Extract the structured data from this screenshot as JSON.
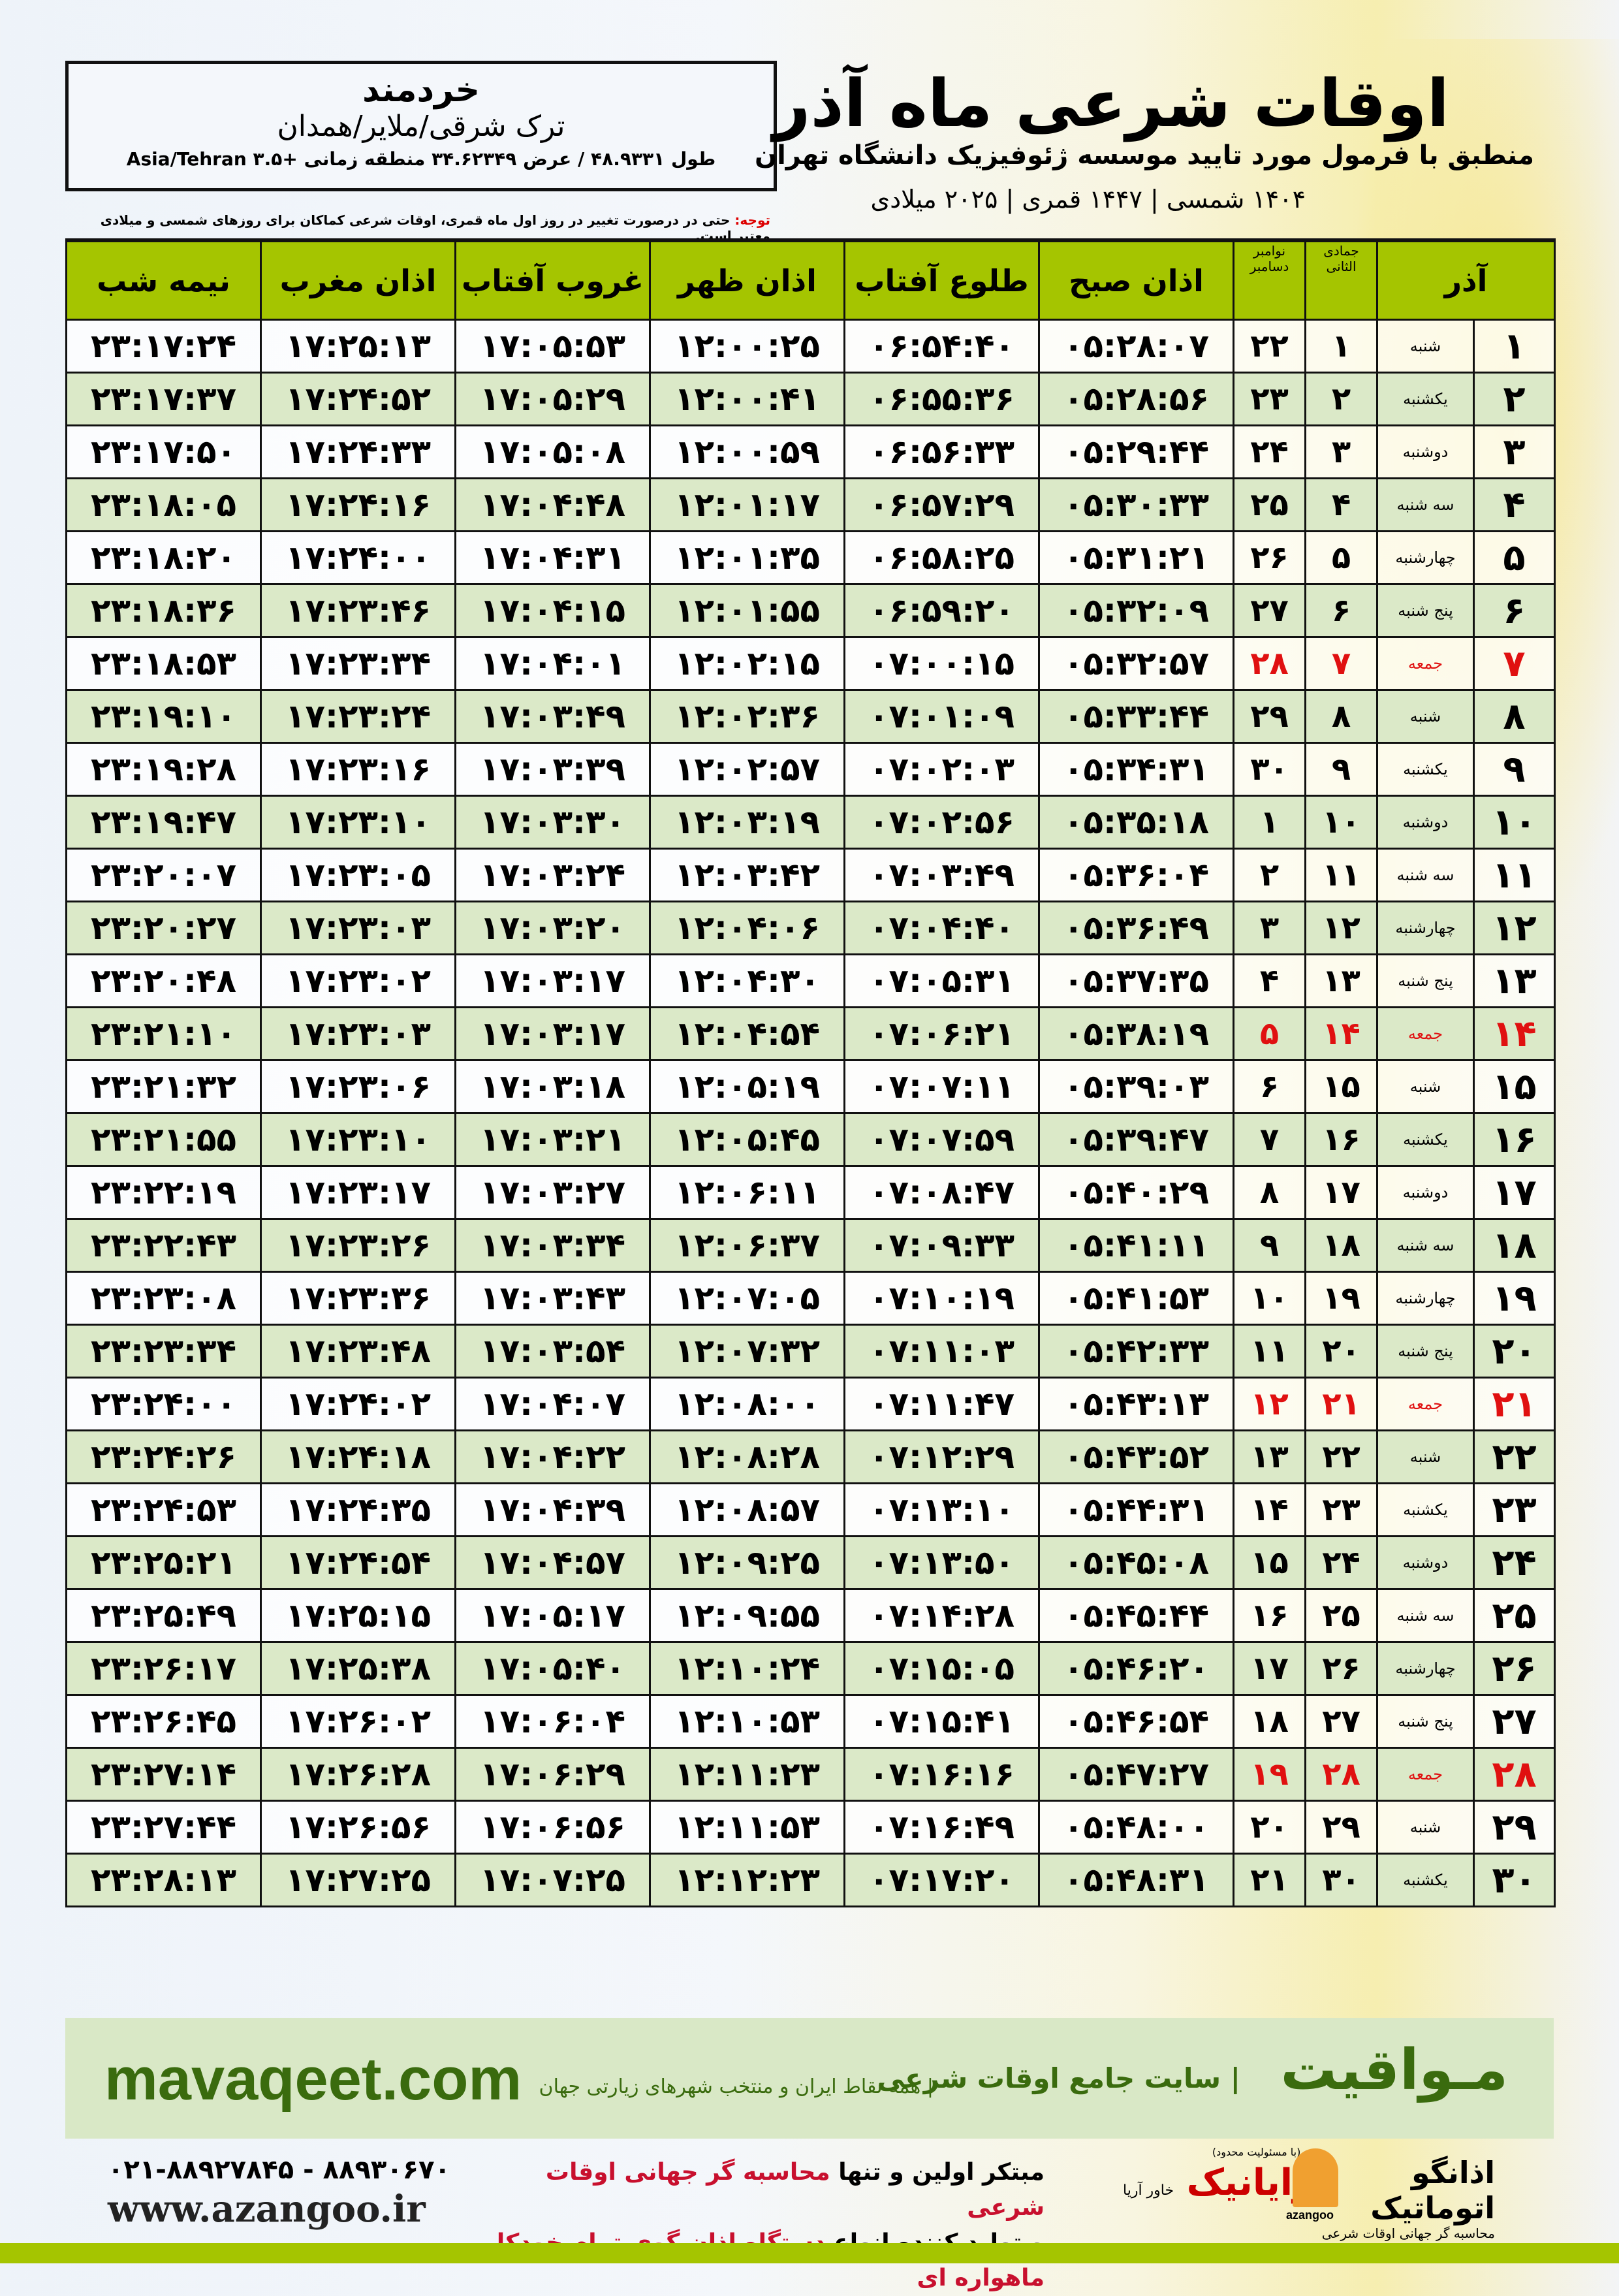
{
  "location": {
    "city": "خردمند",
    "region": "ترک شرقی/ملایر/همدان",
    "coords": "طول ۴۸.۹۳۳۱ / عرض ۳۴.۶۲۳۴۹ منطقه زمانی +۳.۵ Asia/Tehran"
  },
  "header": {
    "title": "اوقات شرعی ماه آذر",
    "subtitle": "منطبق با فرمول مورد تایید موسسه ژئوفیزیک دانشگاه تهران",
    "dates": "۱۴۰۴ شمسی | ۱۴۴۷ قمری | ۲۰۲۵ میلادی"
  },
  "note": {
    "label": "توجه:",
    "text": " حتی در درصورت تغییر در روز اول ماه قمری، اوقات شرعی کماکان برای روزهای شمسی و میلادی معتبر است."
  },
  "columns": {
    "month": "آذر",
    "hijri": "جمادی الثانی",
    "gregorian": "نوامبر دسامبر",
    "fajr": "اذان صبح",
    "sunrise": "طلوع آفتاب",
    "dhuhr": "اذان ظهر",
    "sunset": "غروب آفتاب",
    "maghrib": "اذان مغرب",
    "midnight": "نیمه شب"
  },
  "colors": {
    "header_green": "#a5c500",
    "row_green": "#dbe9c8",
    "friday_red": "#e01010",
    "brand_green": "#3a6b0e"
  },
  "rows": [
    [
      "۱",
      "شنبه",
      "۱",
      "۲۲",
      "۰۵:۲۸:۰۷",
      "۰۶:۵۴:۴۰",
      "۱۲:۰۰:۲۵",
      "۱۷:۰۵:۵۳",
      "۱۷:۲۵:۱۳",
      "۲۳:۱۷:۲۴"
    ],
    [
      "۲",
      "یکشنبه",
      "۲",
      "۲۳",
      "۰۵:۲۸:۵۶",
      "۰۶:۵۵:۳۶",
      "۱۲:۰۰:۴۱",
      "۱۷:۰۵:۲۹",
      "۱۷:۲۴:۵۲",
      "۲۳:۱۷:۳۷"
    ],
    [
      "۳",
      "دوشنبه",
      "۳",
      "۲۴",
      "۰۵:۲۹:۴۴",
      "۰۶:۵۶:۳۳",
      "۱۲:۰۰:۵۹",
      "۱۷:۰۵:۰۸",
      "۱۷:۲۴:۳۳",
      "۲۳:۱۷:۵۰"
    ],
    [
      "۴",
      "سه شنبه",
      "۴",
      "۲۵",
      "۰۵:۳۰:۳۳",
      "۰۶:۵۷:۲۹",
      "۱۲:۰۱:۱۷",
      "۱۷:۰۴:۴۸",
      "۱۷:۲۴:۱۶",
      "۲۳:۱۸:۰۵"
    ],
    [
      "۵",
      "چهارشنبه",
      "۵",
      "۲۶",
      "۰۵:۳۱:۲۱",
      "۰۶:۵۸:۲۵",
      "۱۲:۰۱:۳۵",
      "۱۷:۰۴:۳۱",
      "۱۷:۲۴:۰۰",
      "۲۳:۱۸:۲۰"
    ],
    [
      "۶",
      "پنج شنبه",
      "۶",
      "۲۷",
      "۰۵:۳۲:۰۹",
      "۰۶:۵۹:۲۰",
      "۱۲:۰۱:۵۵",
      "۱۷:۰۴:۱۵",
      "۱۷:۲۳:۴۶",
      "۲۳:۱۸:۳۶"
    ],
    [
      "۷",
      "جمعه",
      "۷",
      "۲۸",
      "۰۵:۳۲:۵۷",
      "۰۷:۰۰:۱۵",
      "۱۲:۰۲:۱۵",
      "۱۷:۰۴:۰۱",
      "۱۷:۲۳:۳۴",
      "۲۳:۱۸:۵۳"
    ],
    [
      "۸",
      "شنبه",
      "۸",
      "۲۹",
      "۰۵:۳۳:۴۴",
      "۰۷:۰۱:۰۹",
      "۱۲:۰۲:۳۶",
      "۱۷:۰۳:۴۹",
      "۱۷:۲۳:۲۴",
      "۲۳:۱۹:۱۰"
    ],
    [
      "۹",
      "یکشنبه",
      "۹",
      "۳۰",
      "۰۵:۳۴:۳۱",
      "۰۷:۰۲:۰۳",
      "۱۲:۰۲:۵۷",
      "۱۷:۰۳:۳۹",
      "۱۷:۲۳:۱۶",
      "۲۳:۱۹:۲۸"
    ],
    [
      "۱۰",
      "دوشنبه",
      "۱۰",
      "۱",
      "۰۵:۳۵:۱۸",
      "۰۷:۰۲:۵۶",
      "۱۲:۰۳:۱۹",
      "۱۷:۰۳:۳۰",
      "۱۷:۲۳:۱۰",
      "۲۳:۱۹:۴۷"
    ],
    [
      "۱۱",
      "سه شنبه",
      "۱۱",
      "۲",
      "۰۵:۳۶:۰۴",
      "۰۷:۰۳:۴۹",
      "۱۲:۰۳:۴۲",
      "۱۷:۰۳:۲۴",
      "۱۷:۲۳:۰۵",
      "۲۳:۲۰:۰۷"
    ],
    [
      "۱۲",
      "چهارشنبه",
      "۱۲",
      "۳",
      "۰۵:۳۶:۴۹",
      "۰۷:۰۴:۴۰",
      "۱۲:۰۴:۰۶",
      "۱۷:۰۳:۲۰",
      "۱۷:۲۳:۰۳",
      "۲۳:۲۰:۲۷"
    ],
    [
      "۱۳",
      "پنج شنبه",
      "۱۳",
      "۴",
      "۰۵:۳۷:۳۵",
      "۰۷:۰۵:۳۱",
      "۱۲:۰۴:۳۰",
      "۱۷:۰۳:۱۷",
      "۱۷:۲۳:۰۲",
      "۲۳:۲۰:۴۸"
    ],
    [
      "۱۴",
      "جمعه",
      "۱۴",
      "۵",
      "۰۵:۳۸:۱۹",
      "۰۷:۰۶:۲۱",
      "۱۲:۰۴:۵۴",
      "۱۷:۰۳:۱۷",
      "۱۷:۲۳:۰۳",
      "۲۳:۲۱:۱۰"
    ],
    [
      "۱۵",
      "شنبه",
      "۱۵",
      "۶",
      "۰۵:۳۹:۰۳",
      "۰۷:۰۷:۱۱",
      "۱۲:۰۵:۱۹",
      "۱۷:۰۳:۱۸",
      "۱۷:۲۳:۰۶",
      "۲۳:۲۱:۳۲"
    ],
    [
      "۱۶",
      "یکشنبه",
      "۱۶",
      "۷",
      "۰۵:۳۹:۴۷",
      "۰۷:۰۷:۵۹",
      "۱۲:۰۵:۴۵",
      "۱۷:۰۳:۲۱",
      "۱۷:۲۳:۱۰",
      "۲۳:۲۱:۵۵"
    ],
    [
      "۱۷",
      "دوشنبه",
      "۱۷",
      "۸",
      "۰۵:۴۰:۲۹",
      "۰۷:۰۸:۴۷",
      "۱۲:۰۶:۱۱",
      "۱۷:۰۳:۲۷",
      "۱۷:۲۳:۱۷",
      "۲۳:۲۲:۱۹"
    ],
    [
      "۱۸",
      "سه شنبه",
      "۱۸",
      "۹",
      "۰۵:۴۱:۱۱",
      "۰۷:۰۹:۳۳",
      "۱۲:۰۶:۳۷",
      "۱۷:۰۳:۳۴",
      "۱۷:۲۳:۲۶",
      "۲۳:۲۲:۴۳"
    ],
    [
      "۱۹",
      "چهارشنبه",
      "۱۹",
      "۱۰",
      "۰۵:۴۱:۵۳",
      "۰۷:۱۰:۱۹",
      "۱۲:۰۷:۰۵",
      "۱۷:۰۳:۴۳",
      "۱۷:۲۳:۳۶",
      "۲۳:۲۳:۰۸"
    ],
    [
      "۲۰",
      "پنج شنبه",
      "۲۰",
      "۱۱",
      "۰۵:۴۲:۳۳",
      "۰۷:۱۱:۰۳",
      "۱۲:۰۷:۳۲",
      "۱۷:۰۳:۵۴",
      "۱۷:۲۳:۴۸",
      "۲۳:۲۳:۳۴"
    ],
    [
      "۲۱",
      "جمعه",
      "۲۱",
      "۱۲",
      "۰۵:۴۳:۱۳",
      "۰۷:۱۱:۴۷",
      "۱۲:۰۸:۰۰",
      "۱۷:۰۴:۰۷",
      "۱۷:۲۴:۰۲",
      "۲۳:۲۴:۰۰"
    ],
    [
      "۲۲",
      "شنبه",
      "۲۲",
      "۱۳",
      "۰۵:۴۳:۵۲",
      "۰۷:۱۲:۲۹",
      "۱۲:۰۸:۲۸",
      "۱۷:۰۴:۲۲",
      "۱۷:۲۴:۱۸",
      "۲۳:۲۴:۲۶"
    ],
    [
      "۲۳",
      "یکشنبه",
      "۲۳",
      "۱۴",
      "۰۵:۴۴:۳۱",
      "۰۷:۱۳:۱۰",
      "۱۲:۰۸:۵۷",
      "۱۷:۰۴:۳۹",
      "۱۷:۲۴:۳۵",
      "۲۳:۲۴:۵۳"
    ],
    [
      "۲۴",
      "دوشنبه",
      "۲۴",
      "۱۵",
      "۰۵:۴۵:۰۸",
      "۰۷:۱۳:۵۰",
      "۱۲:۰۹:۲۵",
      "۱۷:۰۴:۵۷",
      "۱۷:۲۴:۵۴",
      "۲۳:۲۵:۲۱"
    ],
    [
      "۲۵",
      "سه شنبه",
      "۲۵",
      "۱۶",
      "۰۵:۴۵:۴۴",
      "۰۷:۱۴:۲۸",
      "۱۲:۰۹:۵۵",
      "۱۷:۰۵:۱۷",
      "۱۷:۲۵:۱۵",
      "۲۳:۲۵:۴۹"
    ],
    [
      "۲۶",
      "چهارشنبه",
      "۲۶",
      "۱۷",
      "۰۵:۴۶:۲۰",
      "۰۷:۱۵:۰۵",
      "۱۲:۱۰:۲۴",
      "۱۷:۰۵:۴۰",
      "۱۷:۲۵:۳۸",
      "۲۳:۲۶:۱۷"
    ],
    [
      "۲۷",
      "پنج شنبه",
      "۲۷",
      "۱۸",
      "۰۵:۴۶:۵۴",
      "۰۷:۱۵:۴۱",
      "۱۲:۱۰:۵۳",
      "۱۷:۰۶:۰۴",
      "۱۷:۲۶:۰۲",
      "۲۳:۲۶:۴۵"
    ],
    [
      "۲۸",
      "جمعه",
      "۲۸",
      "۱۹",
      "۰۵:۴۷:۲۷",
      "۰۷:۱۶:۱۶",
      "۱۲:۱۱:۲۳",
      "۱۷:۰۶:۲۹",
      "۱۷:۲۶:۲۸",
      "۲۳:۲۷:۱۴"
    ],
    [
      "۲۹",
      "شنبه",
      "۲۹",
      "۲۰",
      "۰۵:۴۸:۰۰",
      "۰۷:۱۶:۴۹",
      "۱۲:۱۱:۵۳",
      "۱۷:۰۶:۵۶",
      "۱۷:۲۶:۵۶",
      "۲۳:۲۷:۴۴"
    ],
    [
      "۳۰",
      "یکشنبه",
      "۳۰",
      "۲۱",
      "۰۵:۴۸:۳۱",
      "۰۷:۱۷:۲۰",
      "۱۲:۱۲:۲۳",
      "۱۷:۰۷:۲۵",
      "۱۷:۲۷:۲۵",
      "۲۳:۲۸:۱۳"
    ]
  ],
  "friday_label": "جمعه",
  "banner": {
    "brand": "مـواقیت",
    "sub": "| سایت جامع اوقات شرعی",
    "tag": "| همه نقاط ایران و منتخب شهرهای زیارتی جهان",
    "site": "mavaqeet.com"
  },
  "footer": {
    "phone": "۰۲۱-۸۸۹۲۷۸۴۵ - ۸۸۹۳۰۶۷۰",
    "www": "www.azangoo.ir",
    "promo1a": "مبتکر اولین و تنها ",
    "promo1b": "محاسبه گر جهانی اوقات شرعی",
    "promo2a": "و تولید کننده انواع ",
    "promo2b": "دستگاه اذان گوی تمام خودکار ماهواره ای",
    "logo_rayanik": "رایانیک",
    "logo_rayanik_small": "(با مسئولیت محدود)",
    "logo_rayanik_side": "خاور آریا",
    "logo_azangoo": "اذانگو اتوماتیک",
    "logo_azangoo_sub": "محاسبه گر جهانی اوقات شرعی",
    "logo_azangoo_en": "azangoo"
  }
}
